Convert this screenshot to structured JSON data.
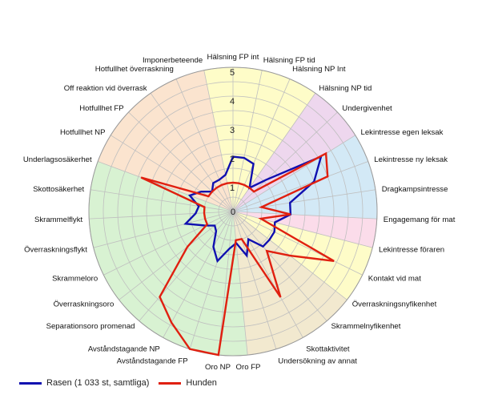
{
  "chart_data": {
    "type": "radar",
    "rmax": 5,
    "ticks": [
      1,
      2,
      3,
      4,
      5
    ],
    "tick_origin_label": "0",
    "categories": [
      "Hälsning FP int",
      "Hälsning FP tid",
      "Hälsning NP Int",
      "Hälsning NP tid",
      "Undergivenhet",
      "Lekintresse egen leksak",
      "Lekintresse ny leksak",
      "Dragkampsintresse",
      "Engagemang för mat",
      "Lekintresse föraren",
      "Kontakt vid mat",
      "Överraskningsnyfikenhet",
      "Skrammelnyfikenhet",
      "Skottaktivitet",
      "Undersökning av annat",
      "Oro FP",
      "Oro NP",
      "Avståndstagande FP",
      "Avståndstagande NP",
      "Separationsoro promenad",
      "Överraskningsoro",
      "Skrammeloro",
      "Överraskningsflykt",
      "Skrammelflykt",
      "Skottosäkerhet",
      "Underlagsosäkerhet",
      "Hotfullhet NP",
      "Hotfullhet FP",
      "Off reaktion vid överrask",
      "Hotfullhet överraskning",
      "Imponerbeteende"
    ],
    "sectors": [
      {
        "from": 0,
        "to": 3,
        "color": "#fefcc8"
      },
      {
        "from": 3,
        "to": 5,
        "color": "#eed7ee"
      },
      {
        "from": 5,
        "to": 8,
        "color": "#d3e9f6"
      },
      {
        "from": 8,
        "to": 9,
        "color": "#fbdcea"
      },
      {
        "from": 9,
        "to": 11,
        "color": "#fefcc8"
      },
      {
        "from": 11,
        "to": 15,
        "color": "#f2e9cf"
      },
      {
        "from": 15,
        "to": 25,
        "color": "#d8f2d2"
      },
      {
        "from": 25,
        "to": 30,
        "color": "#fbe4cf"
      },
      {
        "from": 30,
        "to": 31,
        "color": "#fefcc8"
      }
    ],
    "series": [
      {
        "name": "Rasen (1 033 st, samtliga)",
        "color": "#1010b0",
        "values": [
          1.9,
          1.9,
          1.8,
          1.0,
          1.6,
          3.6,
          3.0,
          2.0,
          2.0,
          1.5,
          1.6,
          1.6,
          1.6,
          1.1,
          1.6,
          1.1,
          1.3,
          1.8,
          1.4,
          0.9,
          0.8,
          1.1,
          1.7,
          1.3,
          1.2,
          1.6,
          1.3,
          1.0,
          1.2,
          1.2,
          1.3
        ]
      },
      {
        "name": "Hunden",
        "color": "#e02010",
        "values": [
          1.0,
          1.0,
          1.0,
          1.0,
          1.0,
          3.8,
          3.5,
          1.0,
          2.0,
          1.0,
          3.9,
          2.5,
          1.8,
          3.4,
          1.0,
          1.0,
          5.0,
          5.0,
          4.4,
          3.9,
          2.0,
          1.0,
          1.0,
          1.0,
          1.0,
          3.4,
          1.0,
          1.0,
          1.0,
          1.0,
          1.0
        ]
      }
    ],
    "grid": true,
    "legend_position": "bottom-left"
  }
}
